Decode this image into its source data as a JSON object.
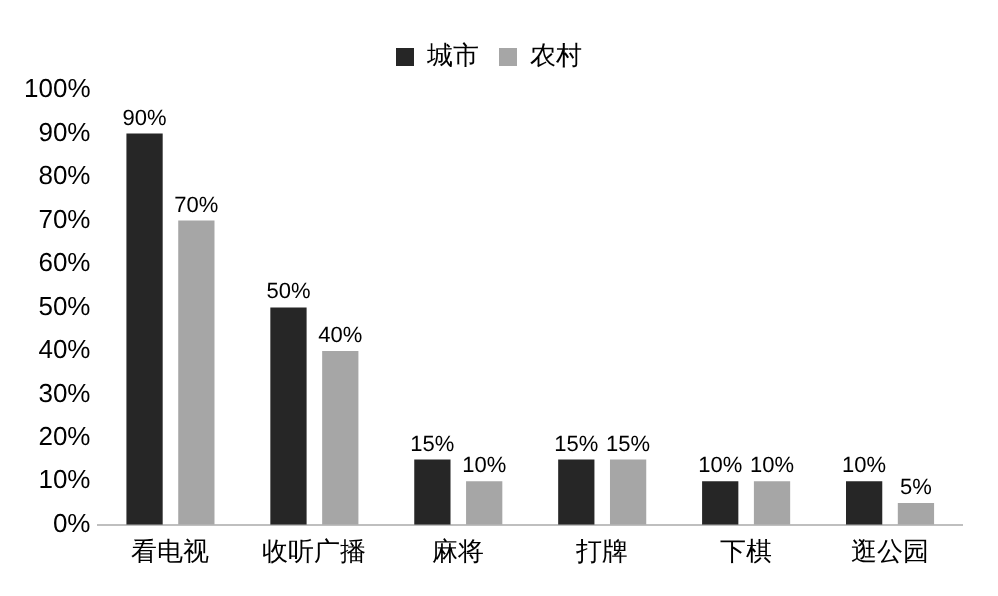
{
  "chart_data": {
    "type": "bar",
    "categories": [
      "看电视",
      "收听广播",
      "麻将",
      "打牌",
      "下棋",
      "逛公园"
    ],
    "series": [
      {
        "name": "城市",
        "color": "#262626",
        "values": [
          90,
          50,
          15,
          15,
          10,
          10
        ],
        "value_labels": [
          "90%",
          "50%",
          "15%",
          "15%",
          "10%",
          "10%"
        ]
      },
      {
        "name": "农村",
        "color": "#a6a6a6",
        "values": [
          70,
          40,
          10,
          15,
          10,
          5
        ],
        "value_labels": [
          "70%",
          "40%",
          "10%",
          "15%",
          "10%",
          "5%"
        ]
      }
    ],
    "ylim": [
      0,
      100
    ],
    "yticks": [
      {
        "value": 0,
        "label": "0%"
      },
      {
        "value": 10,
        "label": "10%"
      },
      {
        "value": 20,
        "label": "20%"
      },
      {
        "value": 30,
        "label": "30%"
      },
      {
        "value": 40,
        "label": "40%"
      },
      {
        "value": 50,
        "label": "50%"
      },
      {
        "value": 60,
        "label": "60%"
      },
      {
        "value": 70,
        "label": "70%"
      },
      {
        "value": 80,
        "label": "80%"
      },
      {
        "value": 90,
        "label": "90%"
      },
      {
        "value": 100,
        "label": "100%"
      }
    ],
    "grid": false,
    "legend": "top"
  }
}
